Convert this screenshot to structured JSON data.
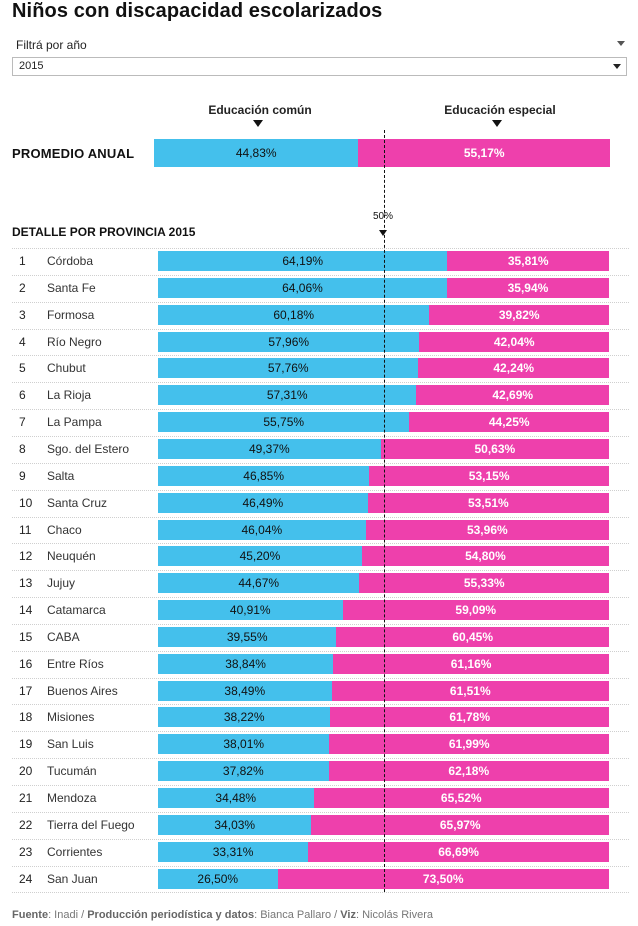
{
  "title": "Niños con discapacidad escolarizados",
  "filter": {
    "label": "Filtrá por año",
    "selected": "2015"
  },
  "headers": {
    "comun": "Educación común",
    "especial": "Educación especial"
  },
  "average": {
    "label": "PROMEDIO ANUAL",
    "comun": 44.83,
    "especial": 55.17,
    "comun_text": "44,83%",
    "especial_text": "55,17%"
  },
  "detail_label": "DETALLE POR PROVINCIA 2015",
  "reference_label": "50%",
  "colors": {
    "comun": "#44c0ec",
    "especial": "#ee40ac"
  },
  "chart_data": {
    "type": "bar",
    "stacked": true,
    "orientation": "horizontal",
    "title": "DETALLE POR PROVINCIA 2015",
    "xlim": [
      0,
      100
    ],
    "reference_line": 50,
    "series": [
      {
        "name": "Educación común",
        "color": "#44c0ec"
      },
      {
        "name": "Educación especial",
        "color": "#ee40ac"
      }
    ],
    "rows": [
      {
        "rank": "1",
        "name": "Córdoba",
        "comun": 64.19,
        "especial": 35.81,
        "comun_text": "64,19%",
        "especial_text": "35,81%"
      },
      {
        "rank": "2",
        "name": "Santa Fe",
        "comun": 64.06,
        "especial": 35.94,
        "comun_text": "64,06%",
        "especial_text": "35,94%"
      },
      {
        "rank": "3",
        "name": "Formosa",
        "comun": 60.18,
        "especial": 39.82,
        "comun_text": "60,18%",
        "especial_text": "39,82%"
      },
      {
        "rank": "4",
        "name": "Río Negro",
        "comun": 57.96,
        "especial": 42.04,
        "comun_text": "57,96%",
        "especial_text": "42,04%"
      },
      {
        "rank": "5",
        "name": "Chubut",
        "comun": 57.76,
        "especial": 42.24,
        "comun_text": "57,76%",
        "especial_text": "42,24%"
      },
      {
        "rank": "6",
        "name": "La Rioja",
        "comun": 57.31,
        "especial": 42.69,
        "comun_text": "57,31%",
        "especial_text": "42,69%"
      },
      {
        "rank": "7",
        "name": "La Pampa",
        "comun": 55.75,
        "especial": 44.25,
        "comun_text": "55,75%",
        "especial_text": "44,25%"
      },
      {
        "rank": "8",
        "name": "Sgo. del Estero",
        "comun": 49.37,
        "especial": 50.63,
        "comun_text": "49,37%",
        "especial_text": "50,63%"
      },
      {
        "rank": "9",
        "name": "Salta",
        "comun": 46.85,
        "especial": 53.15,
        "comun_text": "46,85%",
        "especial_text": "53,15%"
      },
      {
        "rank": "10",
        "name": "Santa Cruz",
        "comun": 46.49,
        "especial": 53.51,
        "comun_text": "46,49%",
        "especial_text": "53,51%"
      },
      {
        "rank": "11",
        "name": "Chaco",
        "comun": 46.04,
        "especial": 53.96,
        "comun_text": "46,04%",
        "especial_text": "53,96%"
      },
      {
        "rank": "12",
        "name": "Neuquén",
        "comun": 45.2,
        "especial": 54.8,
        "comun_text": "45,20%",
        "especial_text": "54,80%"
      },
      {
        "rank": "13",
        "name": "Jujuy",
        "comun": 44.67,
        "especial": 55.33,
        "comun_text": "44,67%",
        "especial_text": "55,33%"
      },
      {
        "rank": "14",
        "name": "Catamarca",
        "comun": 40.91,
        "especial": 59.09,
        "comun_text": "40,91%",
        "especial_text": "59,09%"
      },
      {
        "rank": "15",
        "name": "CABA",
        "comun": 39.55,
        "especial": 60.45,
        "comun_text": "39,55%",
        "especial_text": "60,45%"
      },
      {
        "rank": "16",
        "name": "Entre Ríos",
        "comun": 38.84,
        "especial": 61.16,
        "comun_text": "38,84%",
        "especial_text": "61,16%"
      },
      {
        "rank": "17",
        "name": "Buenos Aires",
        "comun": 38.49,
        "especial": 61.51,
        "comun_text": "38,49%",
        "especial_text": "61,51%"
      },
      {
        "rank": "18",
        "name": "Misiones",
        "comun": 38.22,
        "especial": 61.78,
        "comun_text": "38,22%",
        "especial_text": "61,78%"
      },
      {
        "rank": "19",
        "name": "San Luis",
        "comun": 38.01,
        "especial": 61.99,
        "comun_text": "38,01%",
        "especial_text": "61,99%"
      },
      {
        "rank": "20",
        "name": "Tucumán",
        "comun": 37.82,
        "especial": 62.18,
        "comun_text": "37,82%",
        "especial_text": "62,18%"
      },
      {
        "rank": "21",
        "name": "Mendoza",
        "comun": 34.48,
        "especial": 65.52,
        "comun_text": "34,48%",
        "especial_text": "65,52%"
      },
      {
        "rank": "22",
        "name": "Tierra del Fuego",
        "comun": 34.03,
        "especial": 65.97,
        "comun_text": "34,03%",
        "especial_text": "65,97%"
      },
      {
        "rank": "23",
        "name": "Corrientes",
        "comun": 33.31,
        "especial": 66.69,
        "comun_text": "33,31%",
        "especial_text": "66,69%"
      },
      {
        "rank": "24",
        "name": "San Juan",
        "comun": 26.5,
        "especial": 73.5,
        "comun_text": "26,50%",
        "especial_text": "73,50%"
      }
    ]
  },
  "footer": {
    "source_label": "Fuente",
    "source": ": Inadi / ",
    "production_label": "Producción periodística y datos",
    "production": ": Bianca Pallaro / ",
    "viz_label": "Viz",
    "viz": ": Nicolás Rivera"
  }
}
